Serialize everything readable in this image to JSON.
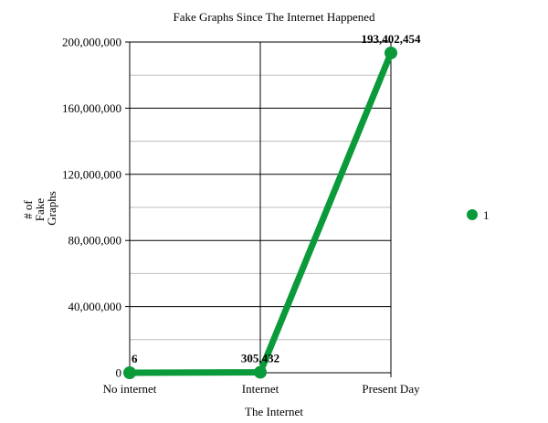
{
  "chart_data": {
    "type": "line",
    "title": "Fake Graphs Since The Internet Happened",
    "xlabel": "The Internet",
    "ylabel": [
      "# of",
      "Fake",
      "Graphs"
    ],
    "categories": [
      "No internet",
      "Internet",
      "Present Day"
    ],
    "series": [
      {
        "name": "1",
        "values": [
          6,
          305432,
          193402454
        ],
        "data_labels": [
          "6",
          "305,432",
          "193,402,454"
        ],
        "color": "#0a9a3a"
      }
    ],
    "ylim": [
      0,
      200000000
    ],
    "yticks": [
      0,
      40000000,
      80000000,
      120000000,
      160000000,
      200000000
    ],
    "ytick_labels": [
      "0",
      "40,000,000",
      "80,000,000",
      "120,000,000",
      "160,000,000",
      "200,000,000"
    ],
    "grid": true,
    "legend_position": "right"
  }
}
